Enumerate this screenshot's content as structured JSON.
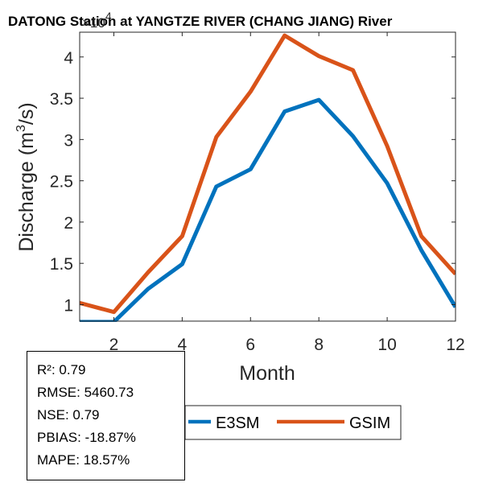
{
  "colors": {
    "e3sm": "#0072BD",
    "gsim": "#D95319",
    "axis": "#262626"
  },
  "chart_data": {
    "type": "line",
    "title": "DATONG Station at  YANGTZE RIVER (CHANG JIANG)  River",
    "xlabel": "Month",
    "ylabel": "Discharge (m³/s)",
    "ylabel_parts": {
      "pre": "Discharge (m",
      "sup": "3",
      "post": "/s)"
    },
    "y_exponent": "×10⁴",
    "y_exponent_parts": {
      "base": "×10",
      "sup": "4"
    },
    "xlim": [
      1,
      12
    ],
    "ylim": [
      0.8,
      4.3
    ],
    "xticks": [
      2,
      4,
      6,
      8,
      10,
      12
    ],
    "yticks": [
      1,
      1.5,
      2,
      2.5,
      3,
      3.5,
      4
    ],
    "x": [
      1,
      2,
      3,
      4,
      5,
      6,
      7,
      8,
      9,
      10,
      11,
      12
    ],
    "series": [
      {
        "name": "E3SM",
        "values": [
          0.79,
          0.79,
          1.19,
          1.49,
          2.43,
          2.64,
          3.34,
          3.48,
          3.04,
          2.47,
          1.66,
          0.97
        ]
      },
      {
        "name": "GSIM",
        "values": [
          1.02,
          0.91,
          1.39,
          1.83,
          3.03,
          3.58,
          4.26,
          4.01,
          3.84,
          2.92,
          1.83,
          1.37
        ]
      }
    ]
  },
  "stats": [
    {
      "label": "R²",
      "value": "0.79"
    },
    {
      "label": "RMSE",
      "value": "5460.73"
    },
    {
      "label": "NSE",
      "value": "0.79"
    },
    {
      "label": "PBIAS",
      "value": "-18.87%"
    },
    {
      "label": "MAPE",
      "value": "18.57%"
    }
  ]
}
